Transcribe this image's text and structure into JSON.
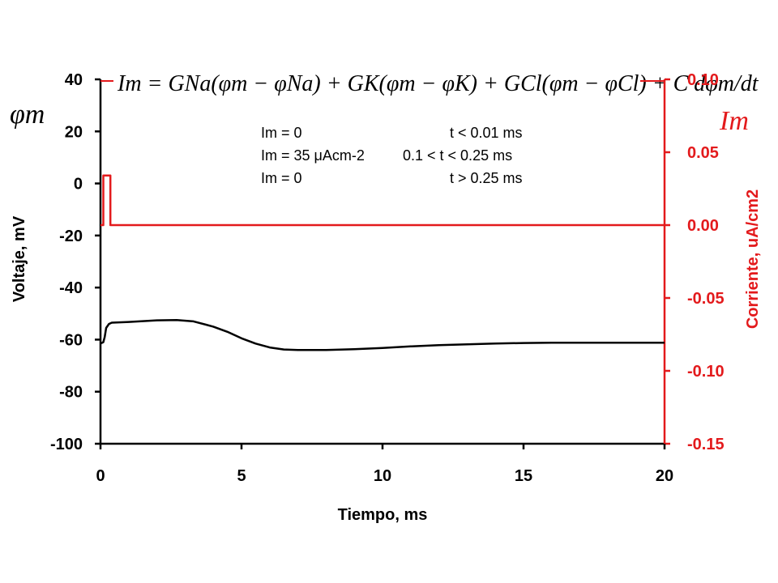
{
  "chart_data": {
    "type": "line",
    "xlabel": "Tiempo, ms",
    "ylabel_left": "Voltaje, mV",
    "ylabel_right": "Corriente, uA/cm2",
    "xlim": [
      0,
      20
    ],
    "ylim_left": [
      -100,
      40
    ],
    "ylim_right": [
      -0.15,
      0.1
    ],
    "x_ticks": [
      "0",
      "5",
      "10",
      "15",
      "20"
    ],
    "y_left_ticks": [
      "40",
      "20",
      "0",
      "-20",
      "-40",
      "-60",
      "-80",
      "-100"
    ],
    "y_right_ticks": [
      "0.10",
      "0.05",
      "0.00",
      "-0.05",
      "-0.10",
      "-0.15"
    ],
    "grid": false,
    "left_symbol": "φm",
    "right_symbol": "Im",
    "colors": {
      "voltage": "#000000",
      "current": "#e31a1c"
    },
    "equation": "Im = GNa(φm − φNa) + GK(φm − φK) + GCl(φm − φCl) + C dφm/dt",
    "annotations": [
      {
        "lhs": "Im = 0",
        "rhs": "t < 0.01 ms"
      },
      {
        "lhs": "Im = 35 μAcm-2",
        "rhs": "0.1 < t < 0.25 ms"
      },
      {
        "lhs": "Im = 0",
        "rhs": "t > 0.25 ms"
      }
    ],
    "series": [
      {
        "axis": "left",
        "x": [
          0,
          0.1,
          0.15,
          0.2,
          0.3,
          0.4,
          1,
          2,
          2.7,
          3.3,
          4,
          4.5,
          5,
          5.5,
          6,
          6.5,
          7,
          8,
          9,
          10,
          11,
          12,
          13,
          14,
          15,
          16,
          17,
          18,
          19,
          20
        ],
        "values": [
          -61.5,
          -61,
          -59,
          -55.5,
          -54,
          -53.5,
          -53.2,
          -52.6,
          -52.5,
          -53,
          -55,
          -57,
          -59.5,
          -61.5,
          -63,
          -63.8,
          -64,
          -64,
          -63.7,
          -63.2,
          -62.6,
          -62.1,
          -61.8,
          -61.5,
          -61.3,
          -61.2,
          -61.2,
          -61.2,
          -61.2,
          -61.2
        ]
      },
      {
        "axis": "right",
        "x": [
          0,
          0.1,
          0.1,
          0.35,
          0.35,
          20
        ],
        "values": [
          0,
          0,
          0.034,
          0.034,
          0,
          0
        ]
      }
    ]
  }
}
